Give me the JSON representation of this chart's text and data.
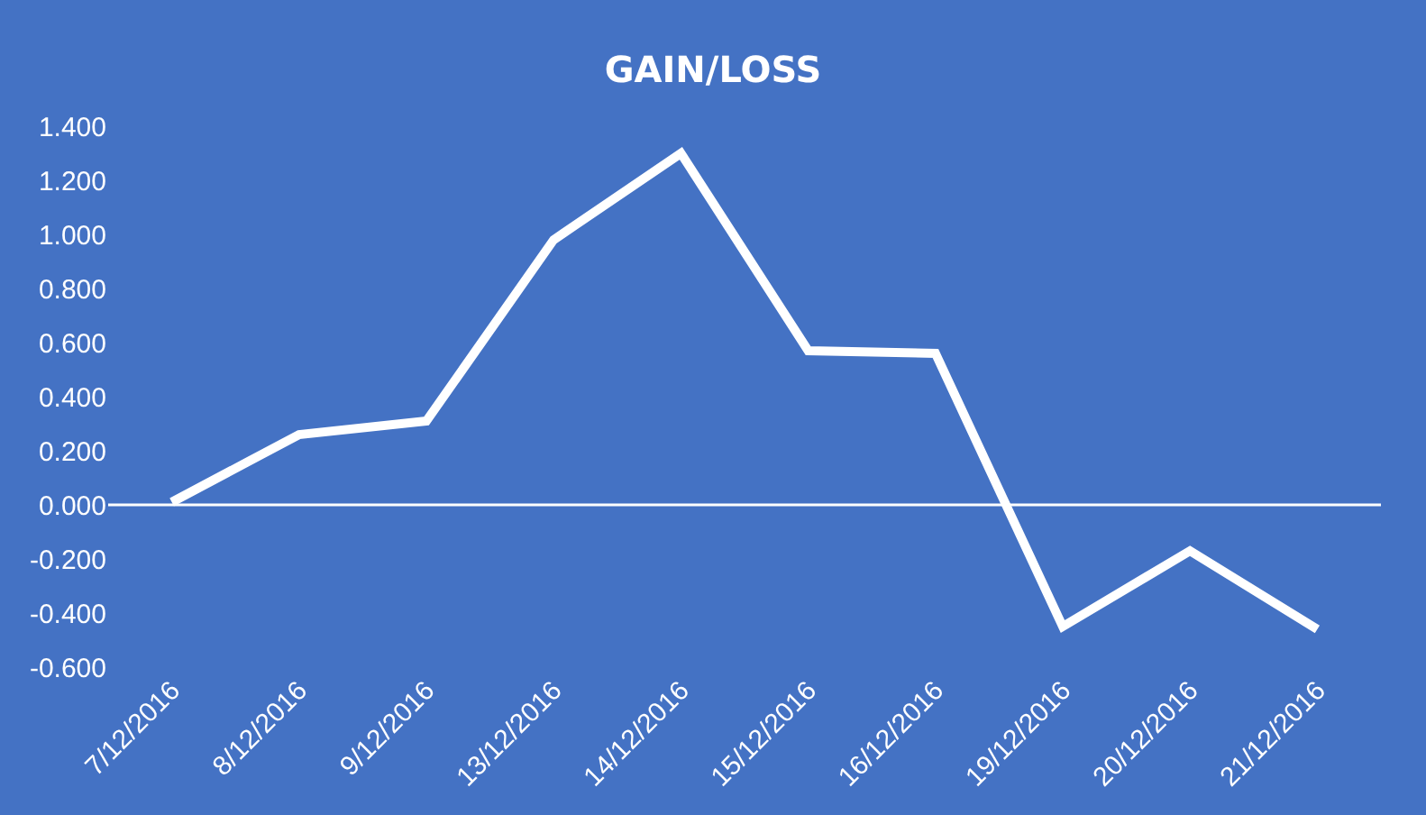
{
  "chart_data": {
    "type": "line",
    "title": "GAIN/LOSS",
    "categories": [
      "7/12/2016",
      "8/12/2016",
      "9/12/2016",
      "13/12/2016",
      "14/12/2016",
      "15/12/2016",
      "16/12/2016",
      "19/12/2016",
      "20/12/2016",
      "21/12/2016"
    ],
    "series": [
      {
        "color": "#ffffff",
        "values": [
          0.01,
          0.26,
          0.31,
          0.98,
          1.3,
          0.57,
          0.56,
          -0.45,
          -0.17,
          -0.46
        ]
      }
    ],
    "ylim": [
      -0.6,
      1.4
    ],
    "yticks": [
      {
        "value": -0.6,
        "label": "-0.600"
      },
      {
        "value": -0.4,
        "label": "-0.400"
      },
      {
        "value": -0.2,
        "label": "-0.200"
      },
      {
        "value": 0,
        "label": "0.000"
      },
      {
        "value": 0.2,
        "label": "0.200"
      },
      {
        "value": 0.4,
        "label": "0.400"
      },
      {
        "value": 0.6,
        "label": "0.600"
      },
      {
        "value": 0.8,
        "label": "0.800"
      },
      {
        "value": 1.0,
        "label": "1.000"
      },
      {
        "value": 1.2,
        "label": "1.200"
      },
      {
        "value": 1.4,
        "label": "1.400"
      }
    ],
    "ref_lines": [
      {
        "axis": "y",
        "value": 0,
        "color": "#ffffff"
      }
    ],
    "grid": false,
    "marker": "none",
    "line_style": "solid"
  }
}
